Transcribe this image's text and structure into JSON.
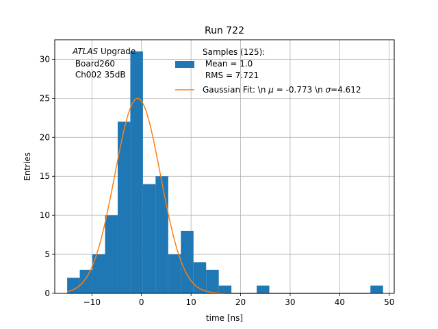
{
  "chart_data": {
    "type": "bar",
    "title": "Run 722",
    "xlabel": "time [ns]",
    "ylabel": "Entries",
    "xlim": [
      -17.5,
      51
    ],
    "ylim": [
      0,
      32.5
    ],
    "grid": true,
    "xticks": [
      -10,
      0,
      10,
      20,
      30,
      40,
      50
    ],
    "yticks": [
      0,
      5,
      10,
      15,
      20,
      25,
      30
    ],
    "histogram": {
      "name": "Samples (125):",
      "color": "#1f77b4",
      "bin_width": 2.55,
      "bin_edges": [
        -15.0,
        -12.45,
        -9.9,
        -7.35,
        -4.8,
        -2.25,
        0.3,
        2.85,
        5.4,
        7.95,
        10.5,
        13.05,
        15.6,
        18.15,
        20.7,
        23.25,
        25.8,
        28.35,
        30.9,
        33.45,
        36.0,
        38.55,
        41.1,
        43.65,
        46.2,
        48.75
      ],
      "counts": [
        2,
        3,
        5,
        10,
        22,
        31,
        14,
        15,
        5,
        8,
        4,
        3,
        1,
        0,
        0,
        1,
        0,
        0,
        0,
        0,
        0,
        0,
        0,
        0,
        1
      ]
    },
    "fit": {
      "name": "Gaussian Fit: \\n $\\mu$ = -0.773 \\n $\\sigma$=4.612",
      "color": "#ff7f0e",
      "mu": -0.773,
      "sigma": 4.612,
      "amplitude": 25.0,
      "x_range": [
        -15.0,
        46.2
      ]
    },
    "legend": {
      "placement": "top-right",
      "samples_lines": [
        "Samples (125):",
        " Mean = 1.0",
        " RMS = 7.721"
      ],
      "fit_label_prefix": "Gaussian Fit: \\n ",
      "fit_mu_symbol": "μ",
      "fit_mid": " = -0.773 \\n ",
      "fit_sigma_symbol": "σ",
      "fit_suffix": "=4.612"
    },
    "annotation": {
      "line1_italic": "ATLAS",
      "line1_rest": " Upgrade",
      "line2": " Board260",
      "line3": " Ch002 35dB"
    }
  }
}
